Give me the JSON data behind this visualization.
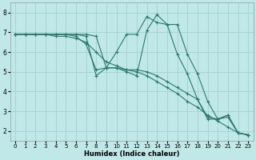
{
  "title": "",
  "xlabel": "Humidex (Indice chaleur)",
  "ylabel": "",
  "background_color": "#c0e8e8",
  "grid_color": "#a8d4d4",
  "line_color": "#2a7a6a",
  "xlim": [
    -0.5,
    23.5
  ],
  "ylim": [
    1.5,
    8.5
  ],
  "xticks": [
    0,
    1,
    2,
    3,
    4,
    5,
    6,
    7,
    8,
    9,
    10,
    11,
    12,
    13,
    14,
    15,
    16,
    17,
    18,
    19,
    20,
    21,
    22,
    23
  ],
  "yticks": [
    2,
    3,
    4,
    5,
    6,
    7,
    8
  ],
  "series": [
    {
      "x": [
        0,
        1,
        2,
        3,
        4,
        5,
        6,
        7,
        8,
        9,
        10,
        11,
        12,
        13,
        14,
        15,
        16,
        17,
        18,
        19,
        20,
        21,
        22,
        23
      ],
      "y": [
        6.9,
        6.9,
        6.9,
        6.9,
        6.9,
        6.9,
        6.9,
        6.9,
        6.8,
        5.2,
        5.2,
        5.1,
        5.1,
        5.0,
        4.8,
        4.5,
        4.2,
        3.9,
        3.6,
        2.7,
        2.6,
        2.8,
        1.9,
        1.8
      ]
    },
    {
      "x": [
        0,
        1,
        2,
        3,
        4,
        5,
        6,
        7,
        8,
        9,
        10,
        11,
        12,
        13,
        14,
        15,
        16,
        17,
        18,
        19,
        20,
        21,
        22,
        23
      ],
      "y": [
        6.9,
        6.9,
        6.9,
        6.9,
        6.8,
        6.8,
        6.7,
        6.5,
        6.0,
        5.5,
        5.3,
        5.1,
        5.0,
        4.8,
        4.5,
        4.2,
        3.9,
        3.5,
        3.2,
        2.8,
        2.5,
        2.2,
        1.9,
        1.8
      ]
    },
    {
      "x": [
        0,
        1,
        2,
        3,
        4,
        5,
        6,
        7,
        8,
        9,
        10,
        11,
        12,
        13,
        14,
        15,
        16,
        17,
        18,
        19,
        20,
        21,
        22,
        23
      ],
      "y": [
        6.9,
        6.9,
        6.9,
        6.9,
        6.9,
        6.9,
        6.9,
        6.8,
        4.8,
        5.2,
        6.0,
        6.9,
        6.9,
        7.8,
        7.5,
        7.4,
        7.4,
        5.9,
        4.9,
        3.5,
        2.6,
        2.7,
        1.9,
        1.8
      ]
    },
    {
      "x": [
        0,
        1,
        2,
        3,
        4,
        5,
        6,
        7,
        8,
        9,
        10,
        11,
        12,
        13,
        14,
        15,
        16,
        17,
        18,
        19,
        20,
        21,
        22,
        23
      ],
      "y": [
        6.9,
        6.9,
        6.9,
        6.9,
        6.9,
        6.9,
        6.8,
        6.4,
        5.1,
        5.2,
        5.2,
        5.0,
        4.8,
        7.1,
        7.9,
        7.4,
        5.9,
        4.9,
        3.6,
        2.6,
        2.6,
        2.8,
        1.9,
        1.8
      ]
    }
  ],
  "xlabel_fontsize": 6.0,
  "tick_fontsize_x": 5.0,
  "tick_fontsize_y": 5.5
}
